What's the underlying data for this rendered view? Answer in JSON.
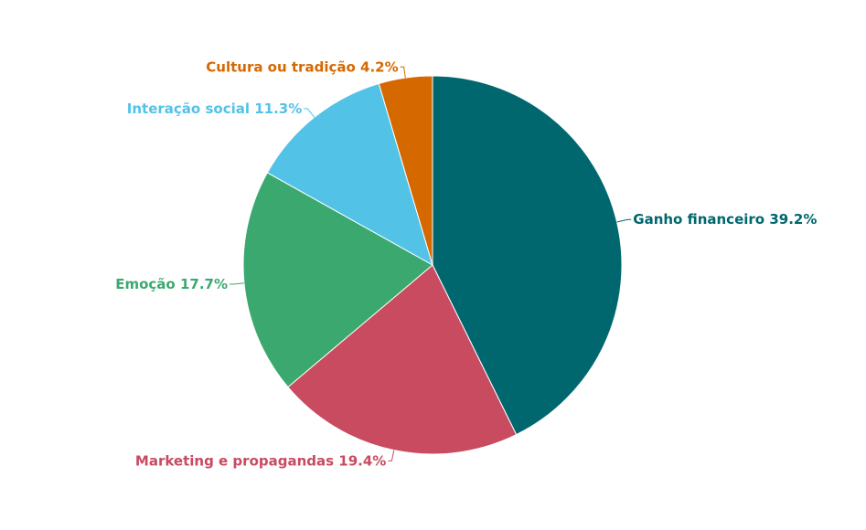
{
  "chart_data": {
    "type": "pie",
    "categories": [
      "Ganho financeiro",
      "Marketing e propagandas",
      "Emoção",
      "Interação social",
      "Cultura ou tradição"
    ],
    "values": [
      39.2,
      19.4,
      17.7,
      11.3,
      4.2
    ],
    "value_labels": [
      "39.2%",
      "19.4%",
      "17.7%",
      "11.3%",
      "4.2%"
    ],
    "colors": [
      "#00676f",
      "#c84b60",
      "#3ba96f",
      "#53c2e7",
      "#d56900"
    ]
  }
}
